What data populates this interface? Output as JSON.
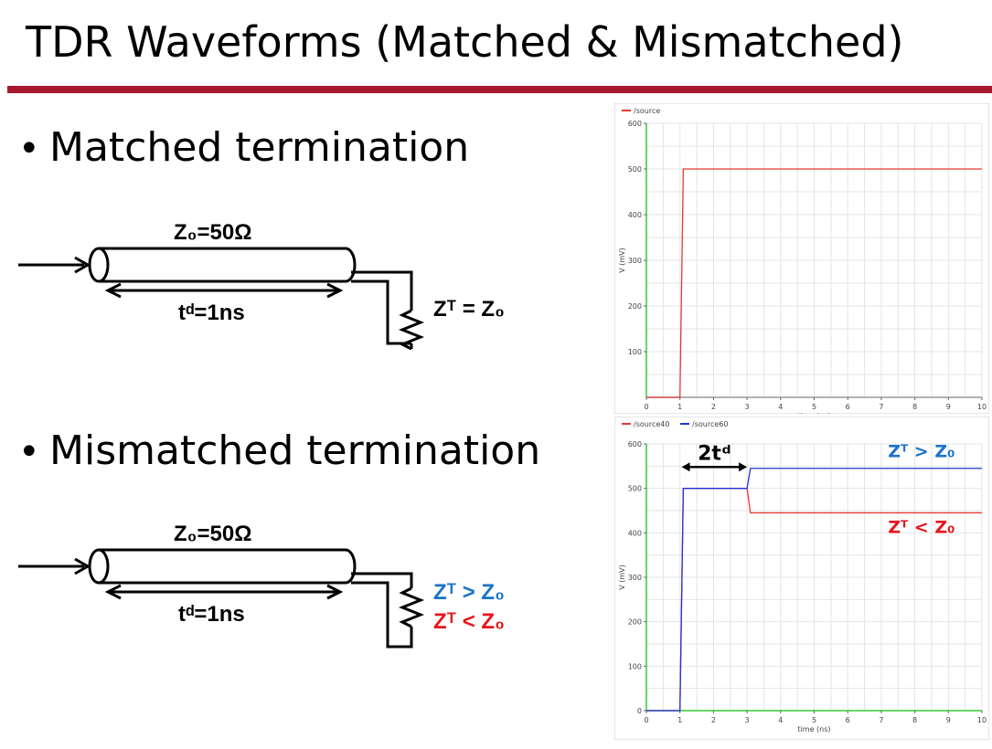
{
  "slide": {
    "title": "TDR Waveforms (Matched & Mismatched)",
    "bullets": [
      "Matched termination",
      "Mismatched termination"
    ]
  },
  "diagram_matched": {
    "z0": "Z₀=50Ω",
    "td": "tᵈ=1ns",
    "zt": "Zᵀ = Z₀"
  },
  "diagram_mismatched": {
    "z0": "Z₀=50Ω",
    "td": "tᵈ=1ns",
    "zt_greater": "Zᵀ > Z₀",
    "zt_less": "Zᵀ < Z₀"
  },
  "colors": {
    "accent_rule": "#a6192e",
    "blue": "#1a73c8",
    "red": "#e8161b",
    "trace_red": "#e53935",
    "trace_blue": "#2233dd",
    "axis_green": "#33cc33"
  },
  "chart_data": [
    {
      "type": "line",
      "legend": [
        "/source"
      ],
      "xlabel": "time (ns)",
      "ylabel": "V (mV)",
      "xlim": [
        0,
        10
      ],
      "ylim": [
        0,
        600
      ],
      "xticks": [
        0,
        1,
        2,
        3,
        4,
        5,
        6,
        7,
        8,
        9,
        10
      ],
      "yticks": [
        100,
        200,
        300,
        400,
        500,
        600
      ],
      "grid": true,
      "series": [
        {
          "name": "/source",
          "color": "#e53935",
          "x": [
            0,
            1,
            1.1,
            10
          ],
          "y": [
            0,
            0,
            500,
            500
          ]
        }
      ]
    },
    {
      "type": "line",
      "legend": [
        "/source40",
        "/source60"
      ],
      "xlabel": "time (ns)",
      "ylabel": "V (mV)",
      "xlim": [
        0,
        10
      ],
      "ylim": [
        0,
        600
      ],
      "xticks": [
        0,
        1,
        2,
        3,
        4,
        5,
        6,
        7,
        8,
        9,
        10
      ],
      "yticks": [
        0,
        100,
        200,
        300,
        400,
        500,
        600
      ],
      "grid": true,
      "annotations": {
        "delay": "2tᵈ",
        "upper": "Zᵀ > Z₀",
        "lower": "Zᵀ < Z₀"
      },
      "series": [
        {
          "name": "/source40",
          "color": "#e53935",
          "x": [
            0,
            1,
            1.1,
            3,
            3.1,
            10
          ],
          "y": [
            0,
            0,
            500,
            500,
            445,
            445
          ]
        },
        {
          "name": "/source60",
          "color": "#2233dd",
          "x": [
            0,
            1,
            1.1,
            3,
            3.1,
            10
          ],
          "y": [
            0,
            0,
            500,
            500,
            545,
            545
          ]
        }
      ]
    }
  ]
}
